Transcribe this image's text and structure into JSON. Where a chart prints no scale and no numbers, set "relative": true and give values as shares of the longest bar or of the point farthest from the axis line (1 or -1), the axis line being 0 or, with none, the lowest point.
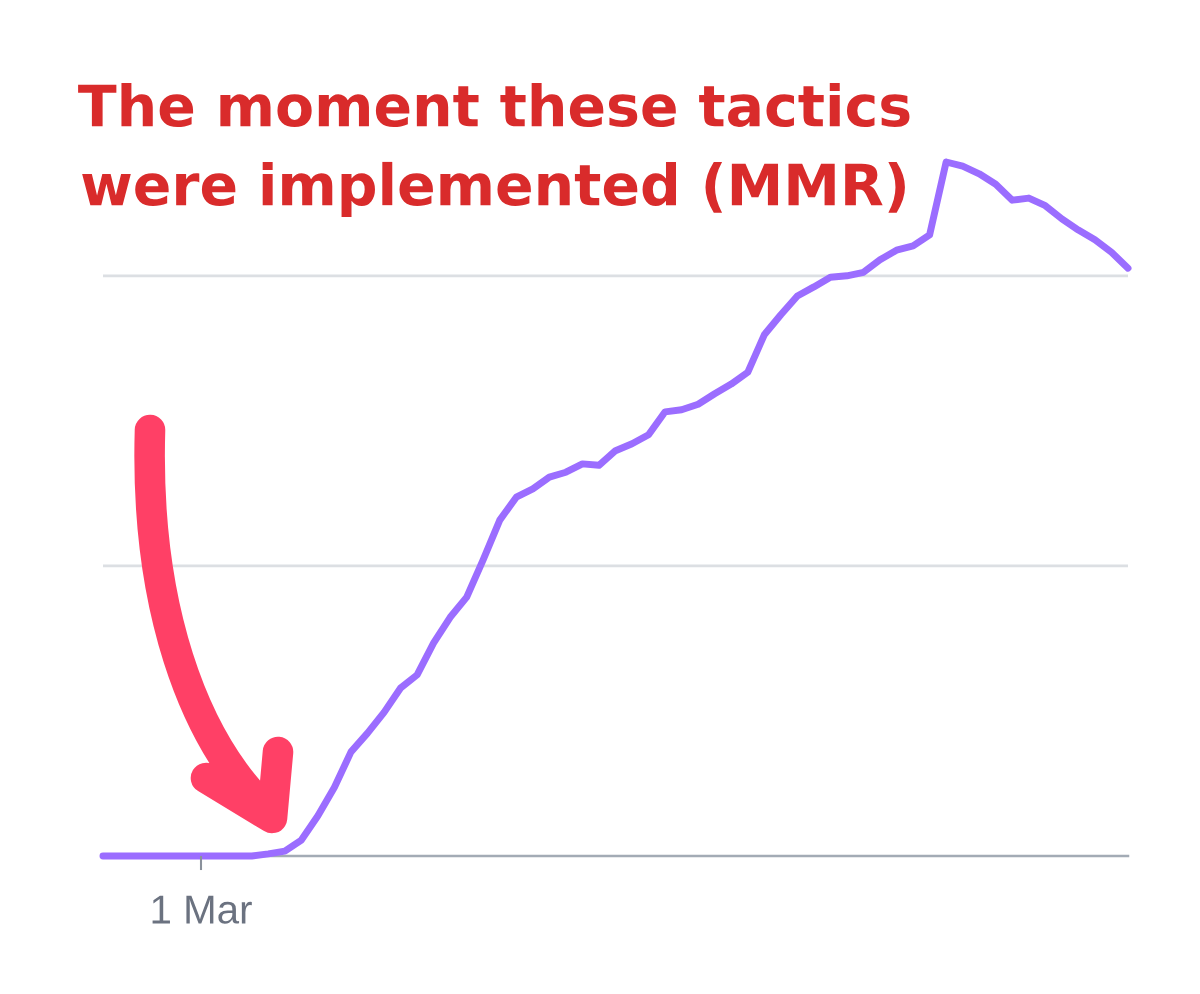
{
  "chart_data": {
    "type": "line",
    "title": "The moment these tactics\nwere implemented (MMR)",
    "relative": true,
    "categories": [
      null,
      null,
      null,
      null,
      null,
      null,
      null,
      null,
      null,
      null,
      null,
      null,
      null,
      null,
      null,
      null,
      null,
      null,
      null,
      null,
      null,
      null,
      null,
      null,
      null,
      null,
      null,
      null,
      null,
      null,
      null,
      null,
      null,
      null,
      null,
      null,
      null,
      null,
      null,
      null,
      null,
      null,
      null,
      null,
      null,
      null,
      null,
      null,
      null,
      null,
      null,
      null,
      null,
      null,
      null,
      null,
      null,
      null,
      null,
      null,
      null,
      null,
      null
    ],
    "series": [
      {
        "color": "#9b6dff",
        "values": [
          0,
          0,
          0,
          0,
          0,
          0,
          0,
          0,
          0,
          0,
          0.003,
          0.007,
          0.023,
          0.058,
          0.099,
          0.15,
          0.177,
          0.207,
          0.242,
          0.261,
          0.307,
          0.344,
          0.373,
          0.427,
          0.484,
          0.517,
          0.529,
          0.546,
          0.553,
          0.565,
          0.563,
          0.584,
          0.594,
          0.607,
          0.64,
          0.643,
          0.651,
          0.666,
          0.68,
          0.697,
          0.751,
          0.78,
          0.807,
          0.82,
          0.834,
          0.836,
          0.841,
          0.859,
          0.873,
          0.879,
          0.895,
          1,
          0.994,
          0.983,
          0.968,
          0.945,
          0.948,
          0.937,
          0.918,
          0.902,
          0.888,
          0.87,
          0.847
        ]
      }
    ],
    "ref_lines": [
      {
        "axis": "y",
        "value": 0.418,
        "color": "#dcdfe3"
      },
      {
        "axis": "y",
        "value": 0.836,
        "color": "#dcdfe3"
      }
    ],
    "annotations": [
      "1 Mar"
    ]
  }
}
